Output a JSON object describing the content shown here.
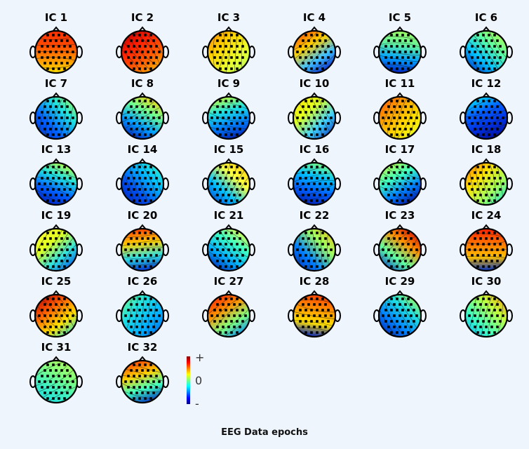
{
  "footer": "EEG Data epochs",
  "colorbar": {
    "plus": "+",
    "zero": "0",
    "minus": "-"
  },
  "components": [
    {
      "label": "IC 1",
      "colors": [
        "#ff3000",
        "#ff4800",
        "#ff9000",
        "#ffe000"
      ]
    },
    {
      "label": "IC 2",
      "colors": [
        "#c00000",
        "#ff2000",
        "#ff6000",
        "#ffc000"
      ]
    },
    {
      "label": "IC 3",
      "colors": [
        "#ff8000",
        "#ffd000",
        "#e8ff30",
        "#b0ff60"
      ]
    },
    {
      "label": "IC 4",
      "colors": [
        "#ff5000",
        "#ffd000",
        "#40c0ff",
        "#0010c0"
      ]
    },
    {
      "label": "IC 5",
      "colors": [
        "#a0ff60",
        "#60f0a0",
        "#00a0ff",
        "#0020c0"
      ]
    },
    {
      "label": "IC 6",
      "colors": [
        "#c0ff40",
        "#60ffa0",
        "#00c0ff",
        "#0020c0"
      ]
    },
    {
      "label": "IC 7",
      "colors": [
        "#c0ff40",
        "#20e0e0",
        "#0060ff",
        "#0030c0"
      ]
    },
    {
      "label": "IC 8",
      "colors": [
        "#ffd000",
        "#70ff90",
        "#00a0ff",
        "#0020c0"
      ]
    },
    {
      "label": "IC 9",
      "colors": [
        "#c0ff40",
        "#20e0e0",
        "#0080ff",
        "#0020b0"
      ]
    },
    {
      "label": "IC 10",
      "colors": [
        "#ffe000",
        "#e0ff20",
        "#40d0ff",
        "#0020b0"
      ]
    },
    {
      "label": "IC 11",
      "colors": [
        "#ff5000",
        "#ffa000",
        "#ffe000",
        "#e0ff30"
      ]
    },
    {
      "label": "IC 12",
      "colors": [
        "#00e0ff",
        "#0060ff",
        "#0030e0",
        "#0010a0"
      ]
    },
    {
      "label": "IC 13",
      "colors": [
        "#c0ff40",
        "#20e0e0",
        "#0060ff",
        "#0020c0"
      ]
    },
    {
      "label": "IC 14",
      "colors": [
        "#40ffc0",
        "#00c0ff",
        "#0050f0",
        "#0020b0"
      ]
    },
    {
      "label": "IC 15",
      "colors": [
        "#ffc000",
        "#ffff40",
        "#00c0ff",
        "#0030d0"
      ]
    },
    {
      "label": "IC 16",
      "colors": [
        "#80ff80",
        "#00c0ff",
        "#0060ff",
        "#0020b0"
      ]
    },
    {
      "label": "IC 17",
      "colors": [
        "#c0ff40",
        "#40ffc0",
        "#0080ff",
        "#0010a0"
      ]
    },
    {
      "label": "IC 18",
      "colors": [
        "#ff7000",
        "#ffe000",
        "#a0ff60",
        "#00e0e0"
      ]
    },
    {
      "label": "IC 19",
      "colors": [
        "#ffff30",
        "#e0ff20",
        "#30e0e0",
        "#0040e0"
      ]
    },
    {
      "label": "IC 20",
      "colors": [
        "#ff4000",
        "#ffd000",
        "#30e0e0",
        "#0030d0"
      ]
    },
    {
      "label": "IC 21",
      "colors": [
        "#ffff40",
        "#40ffc0",
        "#00b0ff",
        "#0020b0"
      ]
    },
    {
      "label": "IC 22",
      "colors": [
        "#ffb000",
        "#a0ff60",
        "#0080ff",
        "#0020b0"
      ]
    },
    {
      "label": "IC 23",
      "colors": [
        "#d00000",
        "#ff9000",
        "#60ffa0",
        "#0030d0"
      ]
    },
    {
      "label": "IC 24",
      "colors": [
        "#ff2000",
        "#ff7000",
        "#ffc000",
        "#0030c0"
      ]
    },
    {
      "label": "IC 25",
      "colors": [
        "#c00000",
        "#ff6000",
        "#ffe000",
        "#20e0e0"
      ]
    },
    {
      "label": "IC 26",
      "colors": [
        "#80ff80",
        "#20e0e0",
        "#00b0ff",
        "#0060e0"
      ]
    },
    {
      "label": "IC 27",
      "colors": [
        "#ff2000",
        "#ff9000",
        "#80ff80",
        "#0080ff"
      ]
    },
    {
      "label": "IC 28",
      "colors": [
        "#ff4000",
        "#ff9000",
        "#ffe000",
        "#0020c0"
      ]
    },
    {
      "label": "IC 29",
      "colors": [
        "#c0ff40",
        "#20e0e0",
        "#0080ff",
        "#0020b0"
      ]
    },
    {
      "label": "IC 30",
      "colors": [
        "#ff9000",
        "#c0ff40",
        "#40ffc0",
        "#00b0ff"
      ]
    },
    {
      "label": "IC 31",
      "colors": [
        "#b0ff60",
        "#80ff80",
        "#40f0c0",
        "#20e0e0"
      ]
    },
    {
      "label": "IC 32",
      "colors": [
        "#ff4000",
        "#ffd000",
        "#40ffc0",
        "#0030c0"
      ]
    }
  ]
}
